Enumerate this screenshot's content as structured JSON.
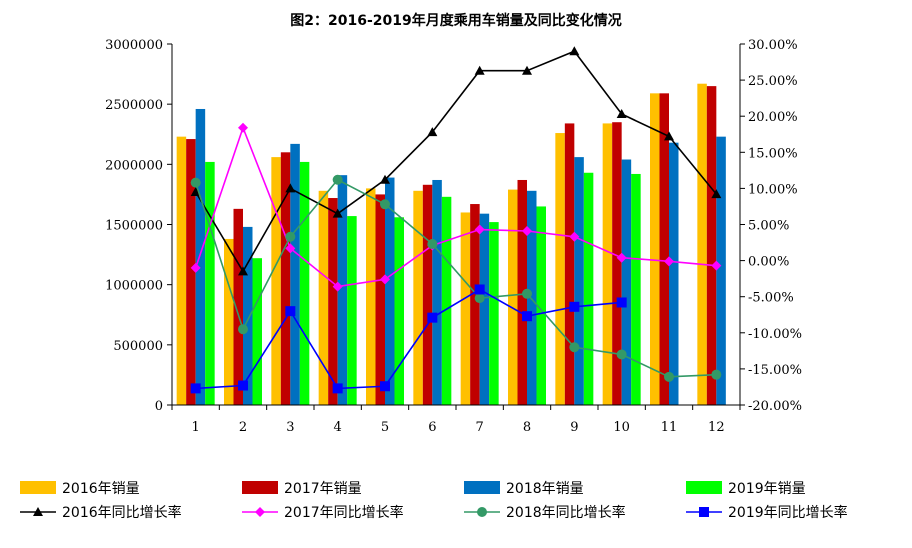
{
  "chart_data": {
    "type": "bar",
    "title": "图2：2016-2019年月度乘用车销量及同比变化情况",
    "categories": [
      "1",
      "2",
      "3",
      "4",
      "5",
      "6",
      "7",
      "8",
      "9",
      "10",
      "11",
      "12"
    ],
    "ylim": [
      0,
      3000000
    ],
    "y_ticks": [
      "0",
      "500000",
      "1000000",
      "1500000",
      "2000000",
      "2500000",
      "3000000"
    ],
    "y2lim": [
      -20,
      30
    ],
    "y2_ticks": [
      "-20.00%",
      "-15.00%",
      "-10.00%",
      "-5.00%",
      "0.00%",
      "5.00%",
      "10.00%",
      "15.00%",
      "20.00%",
      "25.00%",
      "30.00%"
    ],
    "grid": false,
    "legend_position": "bottom",
    "bar_series": [
      {
        "name": "2016年销量",
        "color": "#FFC000",
        "values": [
          2230000,
          1380000,
          2060000,
          1780000,
          1800000,
          1780000,
          1600000,
          1790000,
          2260000,
          2340000,
          2590000,
          2670000
        ]
      },
      {
        "name": "2017年销量",
        "color": "#C00000",
        "values": [
          2210000,
          1630000,
          2100000,
          1720000,
          1750000,
          1830000,
          1670000,
          1870000,
          2340000,
          2350000,
          2590000,
          2650000
        ]
      },
      {
        "name": "2018年销量",
        "color": "#0070C0",
        "values": [
          2460000,
          1480000,
          2170000,
          1910000,
          1890000,
          1870000,
          1590000,
          1780000,
          2060000,
          2040000,
          2180000,
          2230000
        ]
      },
      {
        "name": "2019年销量",
        "color": "#00FF00",
        "values": [
          2020000,
          1220000,
          2020000,
          1570000,
          1560000,
          1730000,
          1520000,
          1650000,
          1930000,
          1920000,
          null,
          null
        ]
      }
    ],
    "line_series": [
      {
        "name": "2016年同比增长率",
        "color": "#000000",
        "marker": "triangle",
        "values": [
          9.5,
          -1.5,
          10.0,
          6.5,
          11.2,
          17.8,
          26.3,
          26.3,
          29.0,
          20.3,
          17.2,
          9.2
        ]
      },
      {
        "name": "2017年同比增长率",
        "color": "#FF00FF",
        "marker": "diamond",
        "values": [
          -1.0,
          18.4,
          1.7,
          -3.6,
          -2.6,
          2.1,
          4.3,
          4.1,
          3.3,
          0.4,
          -0.1,
          -0.7
        ]
      },
      {
        "name": "2018年同比增长率",
        "color": "#339966",
        "marker": "circle",
        "values": [
          10.8,
          -9.5,
          3.3,
          11.2,
          7.8,
          2.3,
          -5.2,
          -4.6,
          -12.0,
          -13.0,
          -16.1,
          -15.8
        ]
      },
      {
        "name": "2019年同比增长率",
        "color": "#0000FF",
        "marker": "square",
        "values": [
          -17.7,
          -17.3,
          -7.0,
          -17.7,
          -17.4,
          -7.9,
          -4.0,
          -7.7,
          -6.4,
          -5.8,
          null,
          null
        ]
      }
    ]
  }
}
